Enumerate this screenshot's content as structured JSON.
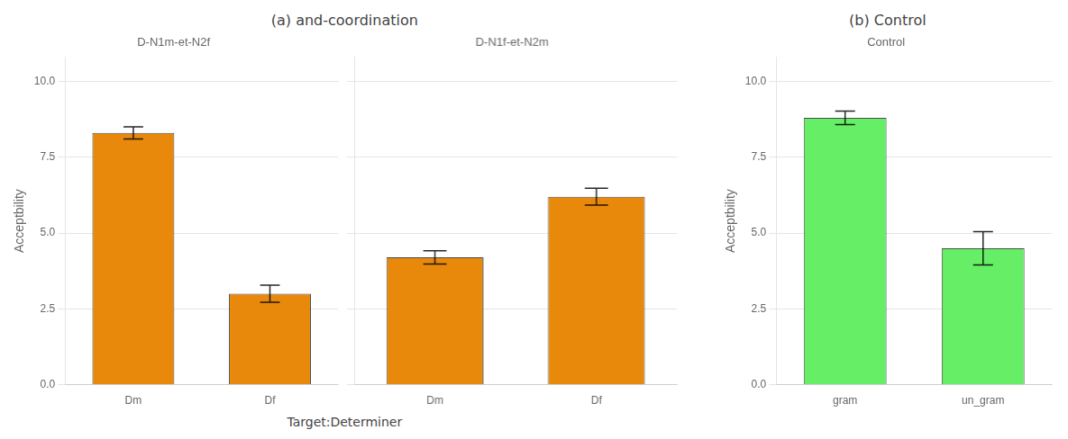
{
  "chart_data": [
    {
      "type": "bar",
      "title": "(a) and-coordination",
      "subtitle": "D-N1m-et-N2f",
      "x_label": "Target:Determiner",
      "y_label": "Acceptbility",
      "categories": [
        "Dm",
        "Df"
      ],
      "values": [
        8.3,
        3.0
      ],
      "errors": [
        0.2,
        0.28
      ],
      "color": "#E8890C",
      "ylim": [
        0,
        10.8
      ],
      "yticks": [
        {
          "value": 0.0,
          "label": "0.0"
        },
        2.5,
        {
          "value": 5.0,
          "label": "5.0"
        },
        7.5,
        {
          "value": 10.0,
          "label": "10.0"
        }
      ],
      "grid": "y"
    },
    {
      "type": "bar",
      "subtitle": "D-N1f-et-N2m",
      "categories": [
        "Dm",
        "Df"
      ],
      "values": [
        4.2,
        6.2
      ],
      "errors": [
        0.22,
        0.28
      ],
      "color": "#E8890C",
      "ylim": [
        0,
        10.8
      ],
      "yticks": [
        {
          "value": 0.0,
          "label": "0.0"
        },
        2.5,
        {
          "value": 5.0,
          "label": "5.0"
        },
        7.5,
        {
          "value": 10.0,
          "label": "10.0"
        }
      ],
      "grid": "y",
      "tick_labels": "x"
    },
    {
      "type": "bar",
      "title": "(b) Control",
      "subtitle": "Control",
      "y_label": "Acceptbility",
      "categories": [
        "gram",
        "un_gram"
      ],
      "values": [
        8.8,
        4.5
      ],
      "errors": [
        0.22,
        0.55
      ],
      "color": "#66EE66",
      "ylim": [
        0,
        10.8
      ],
      "yticks": [
        {
          "value": 0.0,
          "label": "0.0"
        },
        2.5,
        {
          "value": 5.0,
          "label": "5.0"
        },
        7.5,
        {
          "value": 10.0,
          "label": "10.0"
        }
      ],
      "grid": "y"
    }
  ]
}
